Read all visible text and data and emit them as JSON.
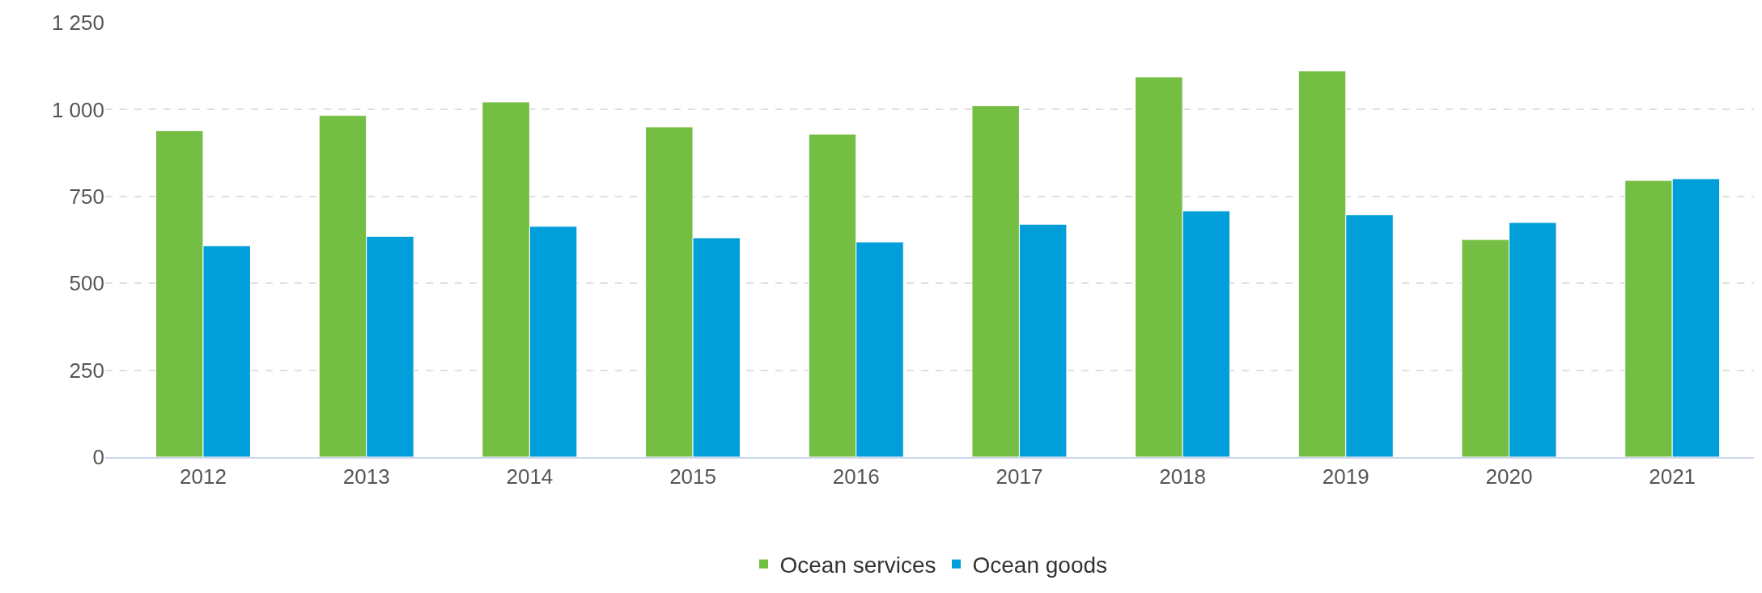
{
  "chart_data": {
    "type": "bar",
    "categories": [
      "2012",
      "2013",
      "2014",
      "2015",
      "2016",
      "2017",
      "2018",
      "2019",
      "2020",
      "2021"
    ],
    "series": [
      {
        "name": "Ocean services",
        "color": "#74be43",
        "values": [
          939,
          983,
          1022,
          950,
          929,
          1011,
          1094,
          1111,
          626,
          796
        ]
      },
      {
        "name": "Ocean goods",
        "color": "#009fda",
        "values": [
          608,
          635,
          664,
          631,
          619,
          670,
          708,
          697,
          675,
          801
        ]
      }
    ],
    "ylim": [
      0,
      1250
    ],
    "yticks": [
      0,
      250,
      500,
      750,
      {
        "value": 1000,
        "label": "1 000"
      },
      {
        "value": 1250,
        "label": "1 250"
      }
    ],
    "grid": "y",
    "legend": "bottom"
  }
}
